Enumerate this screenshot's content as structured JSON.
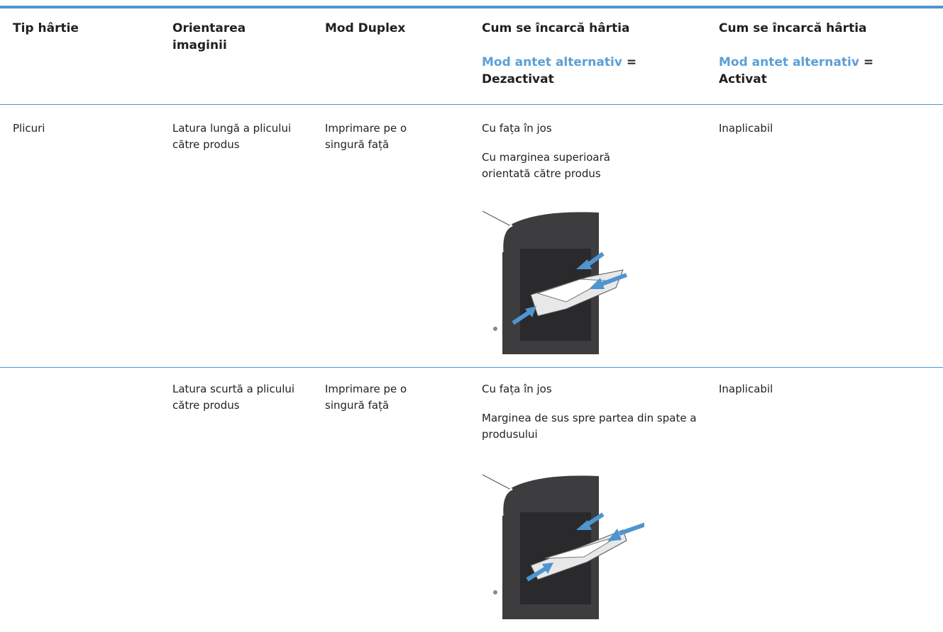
{
  "table": {
    "header": [
      {
        "title": "Tip hârtie"
      },
      {
        "title": "Orientarea imaginii"
      },
      {
        "title": "Mod Duplex"
      },
      {
        "title": "Cum se încarcă hârtia",
        "mode_label": "Mod antet alternativ",
        "equals": "=",
        "mode_value": "Dezactivat"
      },
      {
        "title": "Cum se încarcă hârtia",
        "mode_label": "Mod antet alternativ",
        "equals": "=",
        "mode_value": "Activat"
      }
    ],
    "rows": [
      {
        "paper_type": "Plicuri",
        "orientation": "Latura lungă a plicului către produs",
        "duplex": "Imprimare pe o singură față",
        "loading_off": [
          "Cu fața în jos",
          "Cu marginea superioară orientată către produs"
        ],
        "loading_on": "Inaplicabil"
      },
      {
        "orientation": "Latura scurtă a plicului către produs",
        "duplex": "Imprimare pe o singură față",
        "loading_off": [
          "Cu fața în jos",
          "Marginea de sus spre partea din spate a produsului"
        ],
        "loading_on": "Inaplicabil"
      }
    ]
  }
}
